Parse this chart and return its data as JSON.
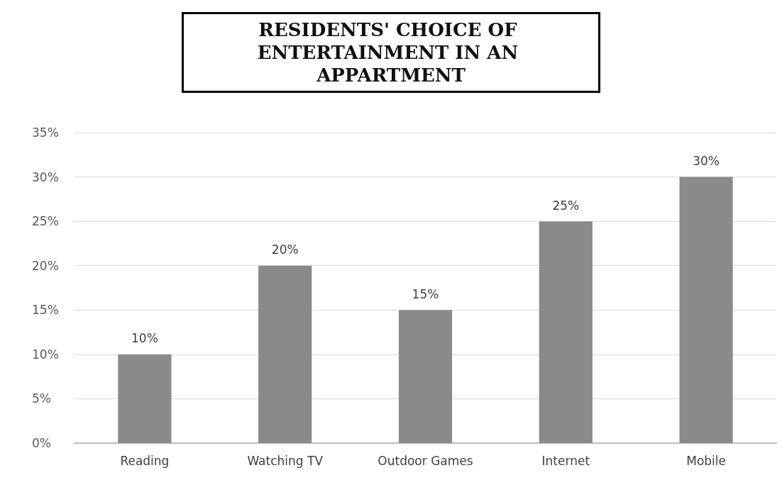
{
  "chart_data": {
    "type": "bar",
    "title": "RESIDENTS' CHOICE OF ENTERTAINMENT IN AN APPARTMENT",
    "categories": [
      "Reading",
      "Watching TV",
      "Outdoor Games",
      "Internet",
      "Mobile"
    ],
    "values": [
      10,
      20,
      15,
      25,
      30
    ],
    "value_labels": [
      "10%",
      "20%",
      "15%",
      "25%",
      "30%"
    ],
    "color": "#8a8a8a",
    "ylim": [
      0,
      35
    ],
    "yticks": [
      {
        "value": 0,
        "label": "0%"
      },
      {
        "value": 5,
        "label": "5%"
      },
      {
        "value": 10,
        "label": "10%"
      },
      {
        "value": 15,
        "label": "15%"
      },
      {
        "value": 20,
        "label": "20%"
      },
      {
        "value": 25,
        "label": "25%"
      },
      {
        "value": 30,
        "label": "30%"
      },
      {
        "value": 35,
        "label": "35%"
      }
    ],
    "grid": "y"
  }
}
